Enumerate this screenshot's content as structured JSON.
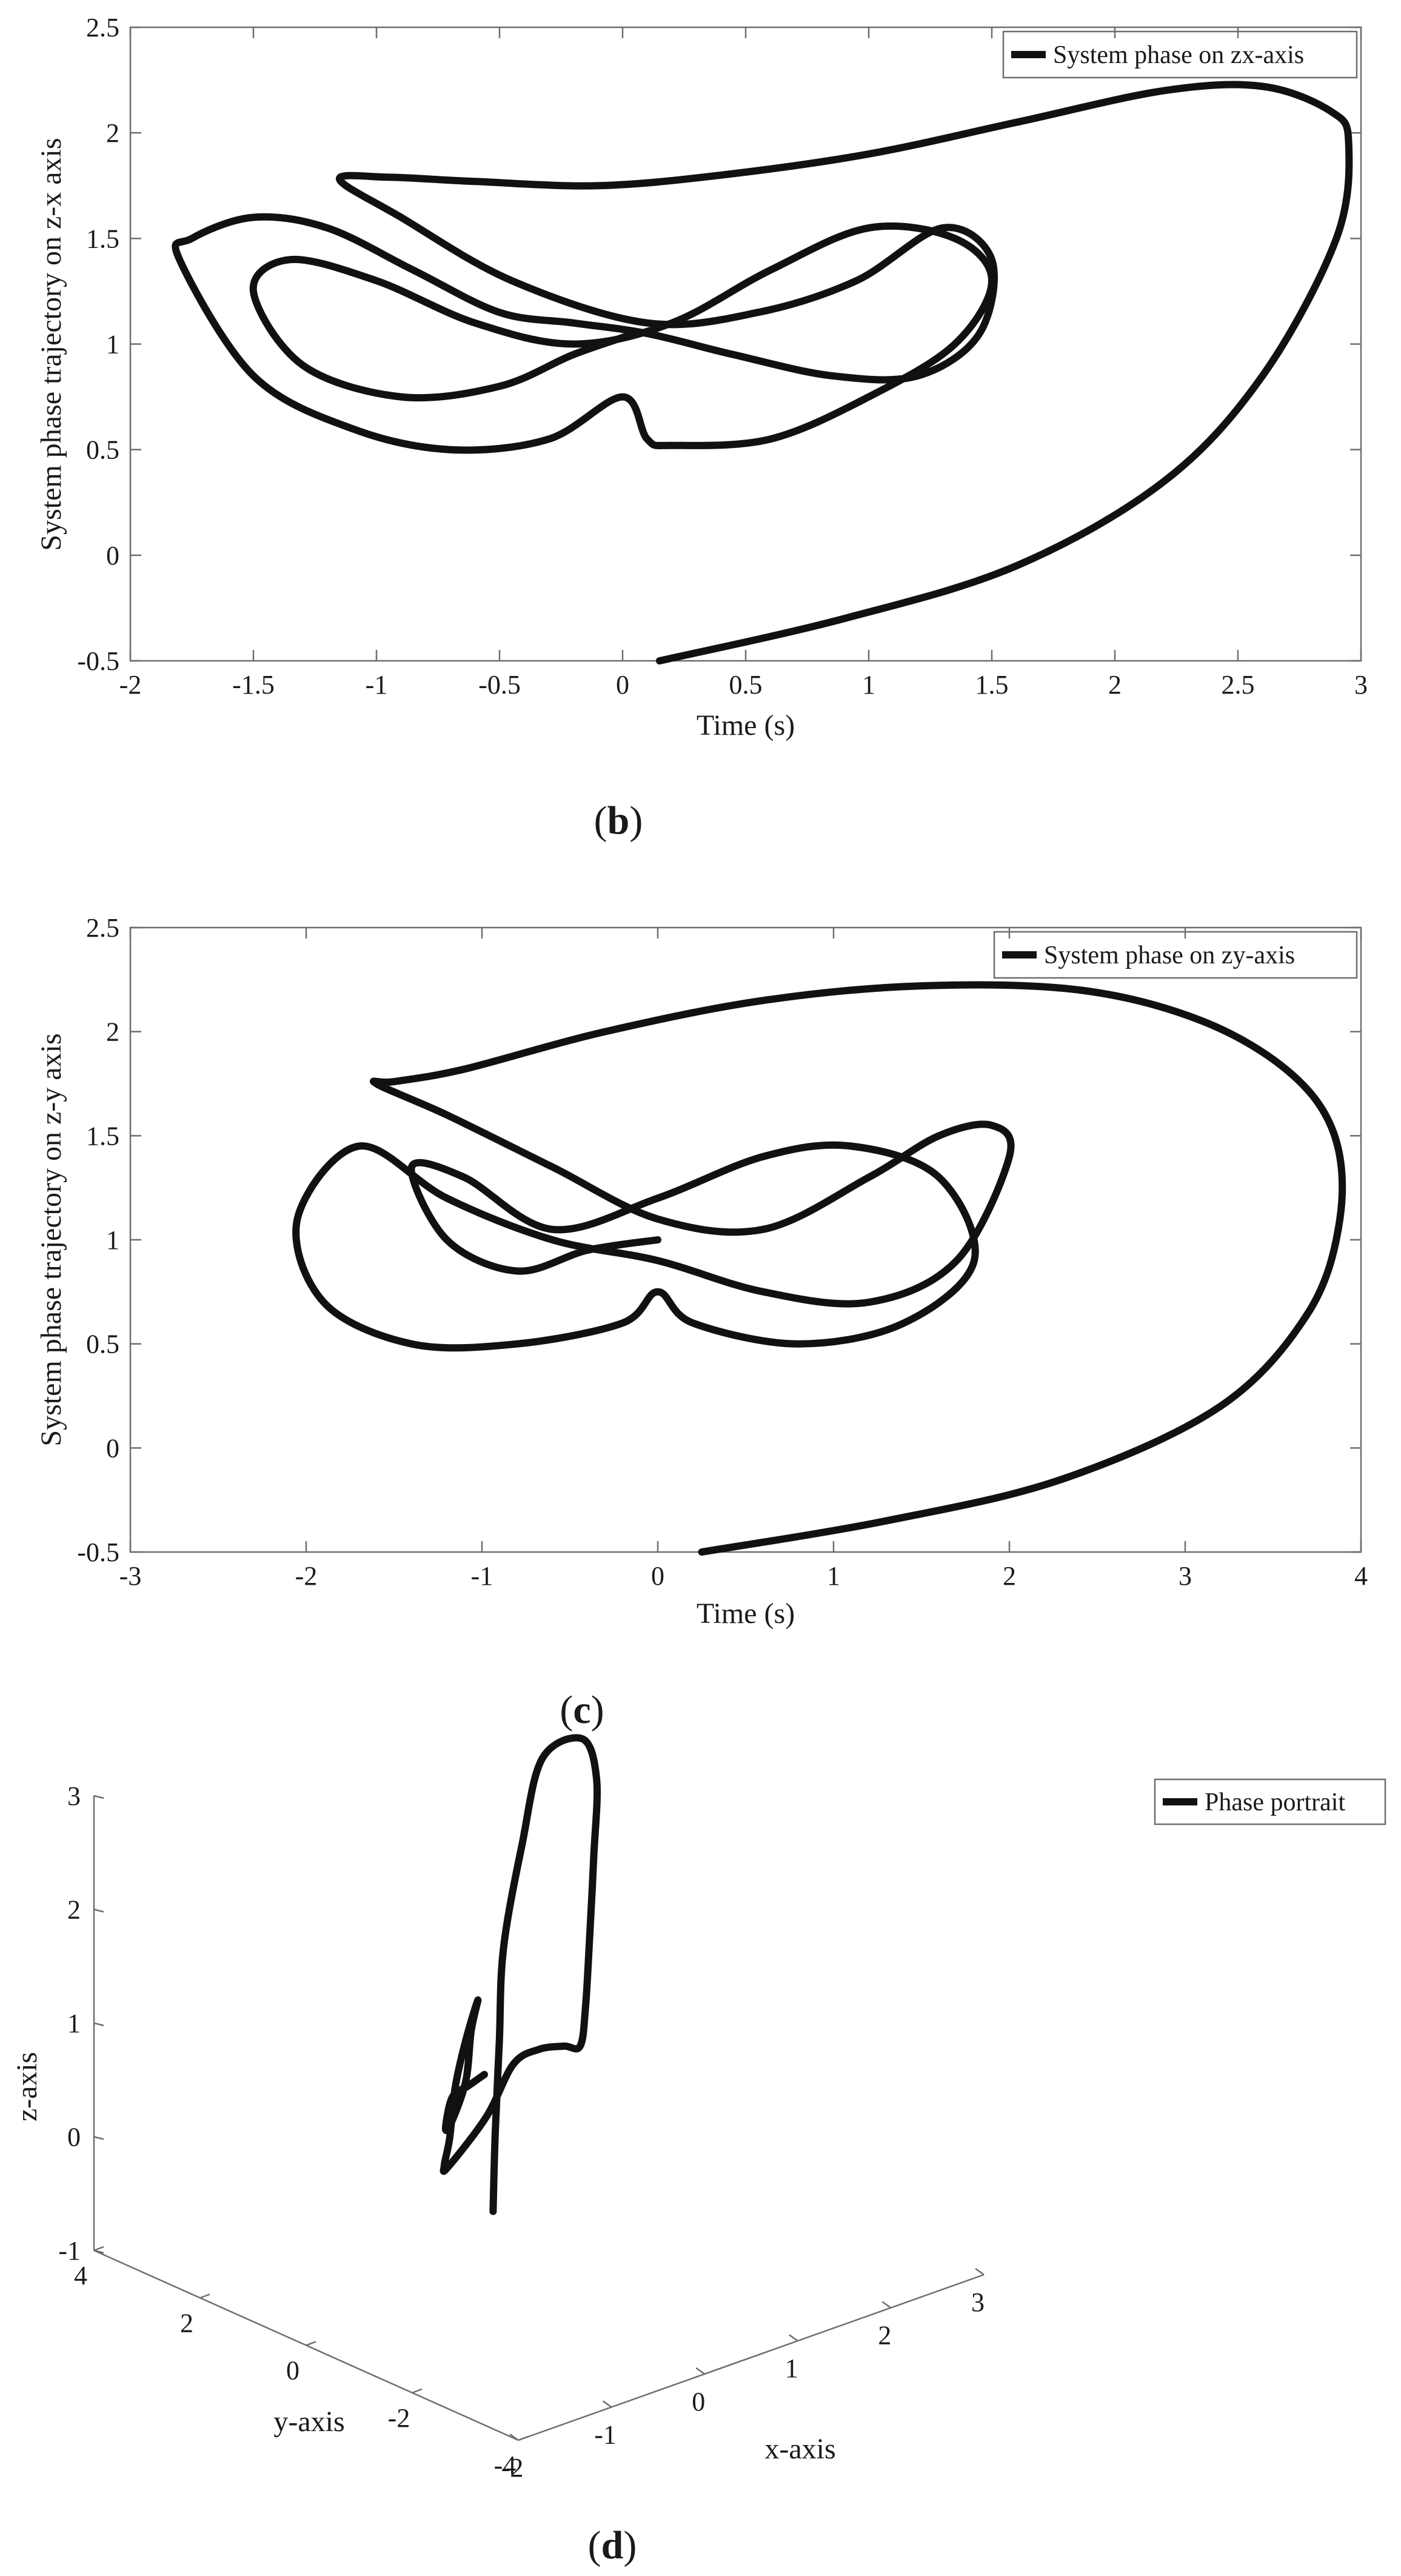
{
  "chart_data": [
    {
      "panel": "b",
      "type": "line",
      "xlabel": "Time (s)",
      "ylabel": "System phase trajectory on z-x axis",
      "xlim": [
        -2,
        3
      ],
      "ylim": [
        -0.5,
        2.5
      ],
      "xticks": [
        "-2",
        "-1.5",
        "-1",
        "-0.5",
        "0",
        "0.5",
        "1",
        "1.5",
        "2",
        "2.5",
        "3"
      ],
      "yticks": [
        "-0.5",
        "0",
        "0.5",
        "1",
        "1.5",
        "2",
        "2.5"
      ],
      "legend": {
        "position": "top-right",
        "entries": [
          "System phase on zx-axis"
        ]
      },
      "series": [
        {
          "name": "System phase on zx-axis",
          "color": "#111111",
          "x": [
            0.15,
            0.9,
            1.6,
            2.2,
            2.6,
            2.9,
            2.95,
            2.88,
            2.6,
            2.2,
            1.6,
            1.0,
            0.4,
            -0.1,
            -0.6,
            -0.95,
            -1.15,
            -0.9,
            -0.45,
            0.1,
            0.55,
            0.95,
            1.3,
            1.5,
            1.45,
            1.2,
            0.85,
            0.45,
            0.1,
            -0.2,
            -0.5,
            -0.85,
            -1.2,
            -1.5,
            -1.75,
            -1.8,
            -1.5,
            -1.1,
            -0.7,
            -0.3,
            0.0,
            0.1,
            0.2,
            0.6,
            1.0,
            1.35,
            1.5,
            1.35,
            1.0,
            0.6,
            0.2,
            -0.2,
            -0.6,
            -1.0,
            -1.35,
            -1.5,
            -1.3,
            -0.9,
            -0.5,
            -0.2,
            0.05
          ],
          "y": [
            -0.5,
            -0.3,
            -0.05,
            0.35,
            0.85,
            1.5,
            1.95,
            2.1,
            2.22,
            2.2,
            2.05,
            1.9,
            1.8,
            1.75,
            1.77,
            1.79,
            1.78,
            1.6,
            1.3,
            1.1,
            1.15,
            1.3,
            1.55,
            1.4,
            1.05,
            0.85,
            0.85,
            0.95,
            1.05,
            1.1,
            1.15,
            1.35,
            1.55,
            1.6,
            1.5,
            1.4,
            0.85,
            0.6,
            0.5,
            0.55,
            0.75,
            0.55,
            0.52,
            0.55,
            0.75,
            1.0,
            1.3,
            1.5,
            1.55,
            1.35,
            1.1,
            1.0,
            1.1,
            1.3,
            1.4,
            1.25,
            0.9,
            0.75,
            0.8,
            0.95,
            1.05
          ]
        }
      ]
    },
    {
      "panel": "c",
      "type": "line",
      "xlabel": "Time (s)",
      "ylabel": "System phase trajectory on z-y axis",
      "xlim": [
        -3,
        4
      ],
      "ylim": [
        -0.5,
        2.5
      ],
      "xticks": [
        "-3",
        "-2",
        "-1",
        "0",
        "1",
        "2",
        "3",
        "4"
      ],
      "yticks": [
        "-0.5",
        "0",
        "0.5",
        "1",
        "1.5",
        "2",
        "2.5"
      ],
      "legend": {
        "position": "top-right",
        "entries": [
          "System phase on zy-axis"
        ]
      },
      "series": [
        {
          "name": "System phase on zy-axis",
          "color": "#111111",
          "x": [
            0.25,
            1.3,
            2.3,
            3.2,
            3.7,
            3.88,
            3.85,
            3.6,
            3.1,
            2.4,
            1.5,
            0.6,
            -0.3,
            -1.1,
            -1.5,
            -1.6,
            -1.2,
            -0.6,
            0.0,
            0.6,
            1.2,
            1.6,
            1.9,
            2.0,
            1.7,
            1.2,
            0.6,
            0.0,
            -0.6,
            -1.2,
            -1.7,
            -2.05,
            -1.9,
            -1.4,
            -0.8,
            -0.2,
            0.0,
            0.2,
            0.8,
            1.4,
            1.8,
            1.6,
            1.1,
            0.6,
            0.0,
            -0.6,
            -1.1,
            -1.4,
            -1.2,
            -0.8,
            -0.4,
            0.0
          ],
          "y": [
            -0.5,
            -0.35,
            -0.15,
            0.2,
            0.65,
            1.1,
            1.5,
            1.8,
            2.05,
            2.2,
            2.22,
            2.15,
            2.0,
            1.82,
            1.76,
            1.75,
            1.6,
            1.35,
            1.1,
            1.05,
            1.3,
            1.5,
            1.55,
            1.4,
            0.9,
            0.7,
            0.75,
            0.9,
            1.0,
            1.2,
            1.45,
            1.1,
            0.7,
            0.5,
            0.5,
            0.6,
            0.75,
            0.6,
            0.5,
            0.6,
            0.9,
            1.3,
            1.45,
            1.4,
            1.2,
            1.05,
            1.3,
            1.35,
            1.0,
            0.85,
            0.95,
            1.0
          ]
        }
      ]
    },
    {
      "panel": "d",
      "type": "line",
      "projection": "3d",
      "xlabel": "x-axis",
      "ylabel": "y-axis",
      "zlabel": "z-axis",
      "xlim": [
        -2,
        3
      ],
      "ylim": [
        -4,
        4
      ],
      "zlim": [
        -1,
        3
      ],
      "xticks": [
        "-2",
        "-1",
        "0",
        "1",
        "2",
        "3"
      ],
      "yticks": [
        "-4",
        "-2",
        "0",
        "2",
        "4"
      ],
      "zticks": [
        "-1",
        "0",
        "1",
        "2",
        "3"
      ],
      "legend": {
        "position": "top-right",
        "entries": [
          "Phase portrait"
        ]
      },
      "series": [
        {
          "name": "Phase portrait",
          "color": "#111111",
          "x": [
            0.15,
            0.6,
            1.1,
            1.6,
            2.2,
            2.7,
            2.9,
            2.6,
            2.0,
            1.5,
            1.0,
            0.6,
            0.2,
            -0.3,
            -0.8,
            -1.2,
            -1.5,
            -1.2,
            -0.8,
            -0.4,
            0.0,
            0.3,
            0.0,
            -0.4,
            -0.9,
            -1.3,
            -1.0,
            -0.6,
            -0.2
          ],
          "y": [
            0.25,
            1.0,
            1.8,
            2.6,
            3.3,
            3.8,
            3.4,
            2.6,
            1.6,
            0.8,
            0.0,
            -0.6,
            -1.0,
            -1.4,
            -1.8,
            -2.0,
            -1.8,
            -1.2,
            -0.6,
            0.0,
            0.5,
            0.8,
            0.4,
            -0.2,
            -0.8,
            -1.4,
            -1.0,
            -0.6,
            -0.2
          ],
          "z": [
            -0.5,
            -0.1,
            0.4,
            0.9,
            1.5,
            2.0,
            2.2,
            2.1,
            1.8,
            1.4,
            1.1,
            1.0,
            1.2,
            1.4,
            1.5,
            1.2,
            0.8,
            0.6,
            0.6,
            0.8,
            1.0,
            1.2,
            1.1,
            0.9,
            0.8,
            1.0,
            1.1,
            1.0,
            0.9
          ]
        }
      ]
    }
  ],
  "panel_tags": [
    {
      "open": "(",
      "letter": "b",
      "close": ")"
    },
    {
      "open": "(",
      "letter": "c",
      "close": ")"
    },
    {
      "open": "(",
      "letter": "d",
      "close": ")"
    }
  ]
}
